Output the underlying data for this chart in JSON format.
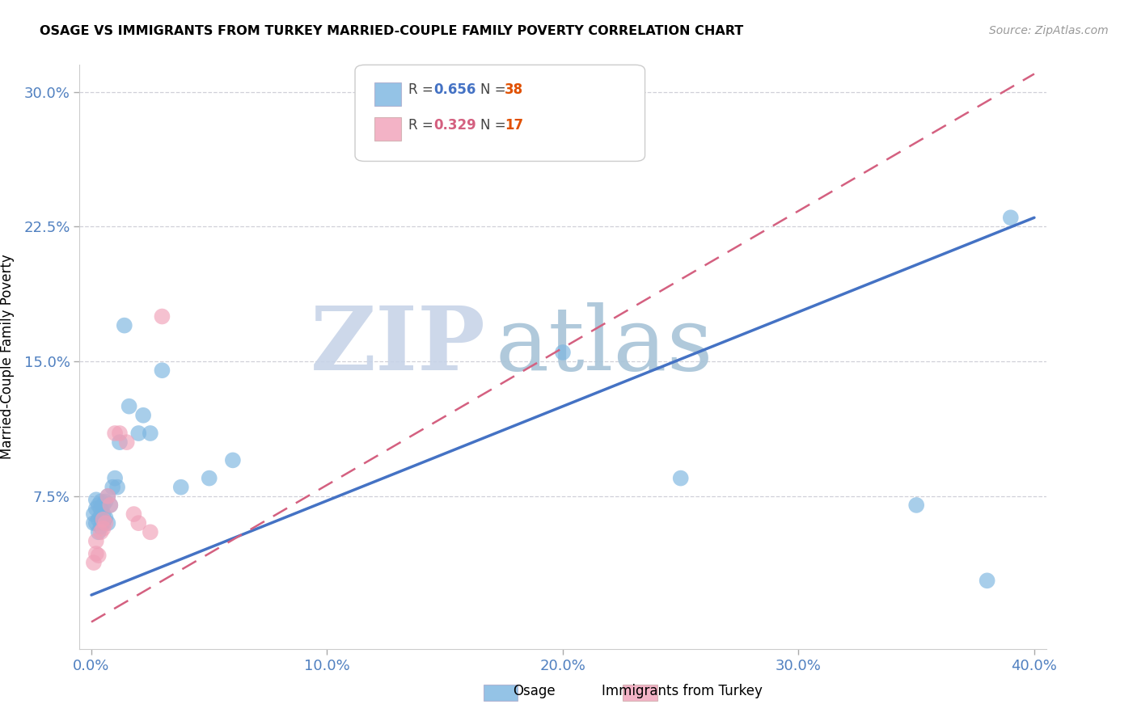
{
  "title": "OSAGE VS IMMIGRANTS FROM TURKEY MARRIED-COUPLE FAMILY POVERTY CORRELATION CHART",
  "source_text": "Source: ZipAtlas.com",
  "ylabel": "Married-Couple Family Poverty",
  "xlim": [
    -0.005,
    0.405
  ],
  "ylim": [
    -0.01,
    0.315
  ],
  "yticks": [
    0.075,
    0.15,
    0.225,
    0.3
  ],
  "ytick_labels": [
    "7.5%",
    "15.0%",
    "22.5%",
    "30.0%"
  ],
  "xticks": [
    0.0,
    0.1,
    0.2,
    0.3,
    0.4
  ],
  "xtick_labels": [
    "0.0%",
    "10.0%",
    "20.0%",
    "30.0%",
    "40.0%"
  ],
  "grid_color": "#d0d0d8",
  "watermark_text1": "ZIP",
  "watermark_text2": "atlas",
  "watermark_color1": "#c8d4e8",
  "watermark_color2": "#a8c4d8",
  "blue_color": "#7ab4e0",
  "pink_color": "#f0a0b8",
  "blue_line_color": "#4472c4",
  "pink_line_color": "#d46080",
  "tick_color": "#5080c0",
  "osage_x": [
    0.001,
    0.001,
    0.002,
    0.002,
    0.002,
    0.003,
    0.003,
    0.003,
    0.004,
    0.004,
    0.004,
    0.004,
    0.005,
    0.005,
    0.005,
    0.006,
    0.006,
    0.007,
    0.007,
    0.008,
    0.009,
    0.01,
    0.011,
    0.012,
    0.014,
    0.016,
    0.02,
    0.022,
    0.025,
    0.03,
    0.038,
    0.05,
    0.06,
    0.2,
    0.25,
    0.35,
    0.38,
    0.39
  ],
  "osage_y": [
    0.06,
    0.065,
    0.06,
    0.068,
    0.073,
    0.055,
    0.062,
    0.07,
    0.058,
    0.064,
    0.068,
    0.072,
    0.06,
    0.065,
    0.07,
    0.063,
    0.072,
    0.06,
    0.075,
    0.07,
    0.08,
    0.085,
    0.08,
    0.105,
    0.17,
    0.125,
    0.11,
    0.12,
    0.11,
    0.145,
    0.08,
    0.085,
    0.095,
    0.155,
    0.085,
    0.07,
    0.028,
    0.23
  ],
  "turkey_x": [
    0.001,
    0.002,
    0.002,
    0.003,
    0.004,
    0.005,
    0.005,
    0.006,
    0.007,
    0.008,
    0.01,
    0.012,
    0.015,
    0.018,
    0.02,
    0.025,
    0.03
  ],
  "turkey_y": [
    0.038,
    0.043,
    0.05,
    0.042,
    0.055,
    0.057,
    0.062,
    0.06,
    0.075,
    0.07,
    0.11,
    0.11,
    0.105,
    0.065,
    0.06,
    0.055,
    0.175
  ],
  "blue_line_x0": 0.0,
  "blue_line_y0": 0.02,
  "blue_line_x1": 0.4,
  "blue_line_y1": 0.23,
  "pink_line_x0": 0.0,
  "pink_line_y0": 0.005,
  "pink_line_x1": 0.4,
  "pink_line_y1": 0.31
}
